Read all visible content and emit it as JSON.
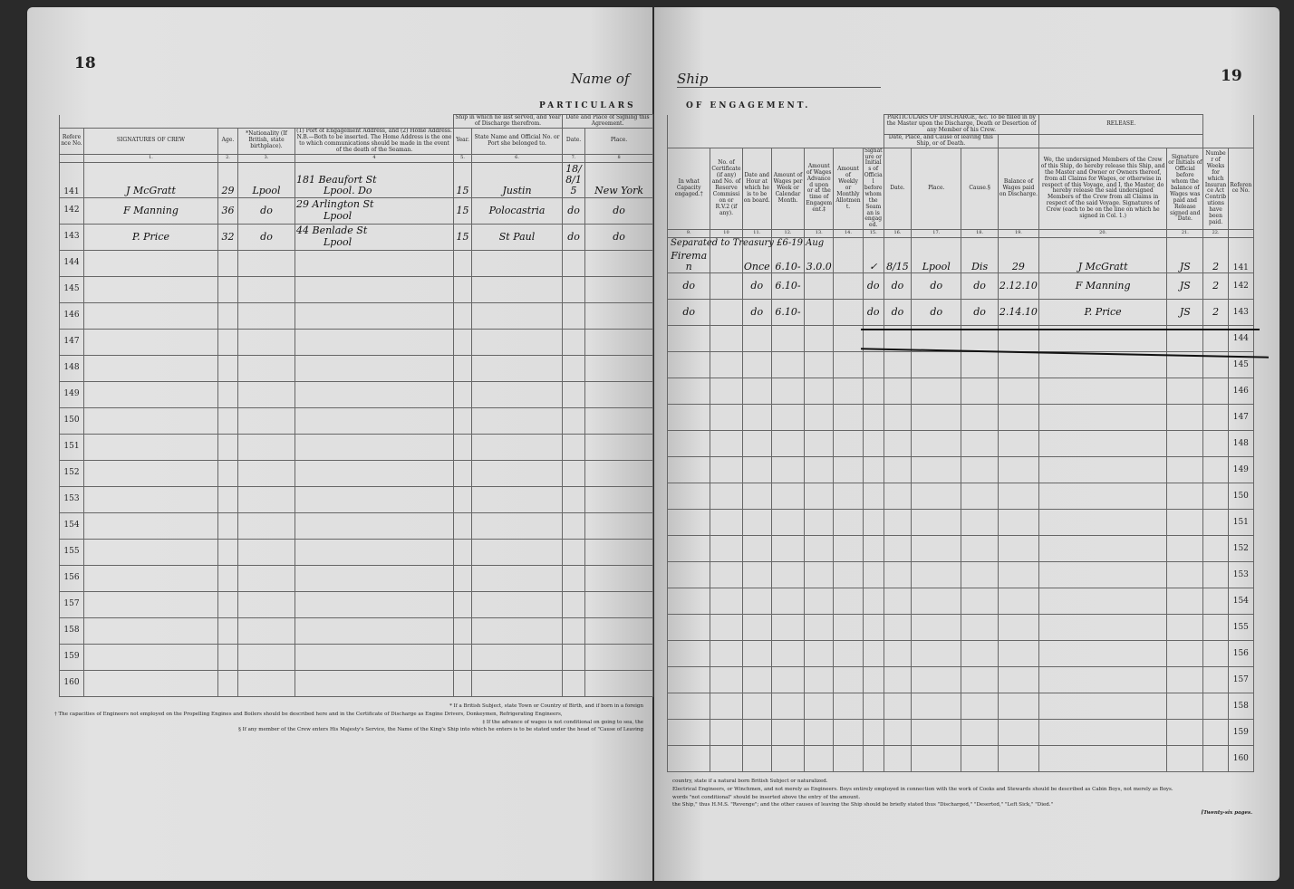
{
  "left_page": {
    "page_number": "18",
    "title": "Name of",
    "banner": "PARTICULARS",
    "columns": [
      {
        "label": "Reference No.",
        "num": ""
      },
      {
        "label": "SIGNATURES OF CREW",
        "num": "1."
      },
      {
        "label": "Age.",
        "num": "2."
      },
      {
        "label": "*Nationality (If British, state birthplace).",
        "num": "3."
      },
      {
        "label": "(1) Port of Engagement Address, and (2) Home Address. N.B.—Both to be inserted. The Home Address is the one to which communications should be made in the event of the death of the Seaman.",
        "num": "4"
      },
      {
        "label": "Year.",
        "num": "5."
      },
      {
        "label": "State Name and Official No. or Port she belonged to.",
        "num": "6."
      },
      {
        "label": "Date.",
        "num": "7."
      },
      {
        "label": "Place.",
        "num": "8"
      }
    ],
    "group_headers": {
      "ship": "Ship in which he last served, and Year of Discharge therefrom.",
      "signing": "Date and Place of Signing this Agreement."
    },
    "rows": [
      {
        "ref": "141",
        "name": "J McGratt",
        "age": "29",
        "nationality": "Lpool",
        "address1": "181 Beaufort St",
        "address2": "Lpool. Do",
        "year": "15",
        "ship": "Justin",
        "date": "18/8/15",
        "place": "New York"
      },
      {
        "ref": "142",
        "name": "F Manning",
        "age": "36",
        "nationality": "do",
        "address1": "29 Arlington St",
        "address2": "Lpool",
        "year": "15",
        "ship": "Polocastria",
        "date": "do",
        "place": "do"
      },
      {
        "ref": "143",
        "name": "P. Price",
        "age": "32",
        "nationality": "do",
        "address1": "44 Benlade St",
        "address2": "Lpool",
        "year": "15",
        "ship": "St Paul",
        "date": "do",
        "place": "do"
      },
      {
        "ref": "144"
      },
      {
        "ref": "145"
      },
      {
        "ref": "146"
      },
      {
        "ref": "147"
      },
      {
        "ref": "148"
      },
      {
        "ref": "149"
      },
      {
        "ref": "150"
      },
      {
        "ref": "151"
      },
      {
        "ref": "152"
      },
      {
        "ref": "153"
      },
      {
        "ref": "154"
      },
      {
        "ref": "155"
      },
      {
        "ref": "156"
      },
      {
        "ref": "157"
      },
      {
        "ref": "158"
      },
      {
        "ref": "159"
      },
      {
        "ref": "160"
      }
    ],
    "footnotes": [
      "† The capacities of Engineers not employed on the Propelling Engines and Boilers should be described here and in the Certificate of Discharge as Engine Drivers, Donkeymen, Refrigerating Engineers,",
      "* If a British Subject, state Town or Country of Birth, and if born in a foreign",
      "§ If any member of the Crew enters His Majesty's Service, the Name of the King's Ship into which he enters is to be stated under the head of \"Cause of Leaving",
      "‡ If the advance of wages is not conditional on going to sea, the"
    ]
  },
  "right_page": {
    "page_number": "19",
    "title": "Ship",
    "banner": "OF ENGAGEMENT.",
    "columns": [
      {
        "label": "In what Capacity engaged.†",
        "num": "9."
      },
      {
        "label": "No. of Certificate (if any) and No. of Reserve Commission or R.V.2 (if any).",
        "num": "10"
      },
      {
        "label": "Date and Hour at which he is to be on board.",
        "num": "11."
      },
      {
        "label": "Amount of Wages per Week or Calendar Month.",
        "num": "12."
      },
      {
        "label": "Amount of Wages Advanced upon or at the time of Engagement.‡",
        "num": "13."
      },
      {
        "label": "Amount of Weekly or Monthly Allotment.",
        "num": "14."
      },
      {
        "label": "Signature or Initials of Official before whom the Seaman is engaged.",
        "num": "15."
      },
      {
        "label": "Date.",
        "num": "16."
      },
      {
        "label": "Place.",
        "num": "17."
      },
      {
        "label": "Cause.§",
        "num": "18."
      },
      {
        "label": "Balance of Wages paid on Discharge.",
        "num": "19."
      },
      {
        "label": "We, the undersigned Members of the Crew of this Ship, do hereby release this Ship, and the Master and Owner or Owners thereof, from all Claims for Wages, or otherwise in respect of this Voyage, and I, the Master, do hereby release the said undersigned Members of the Crew from all Claims in respect of the said Voyage. Signatures of Crew (each to be on the line on which he signed in Col. 1.)",
        "num": "20."
      },
      {
        "label": "Signature or Initials of Official before whom the balance of Wages was paid and Release signed and Date.",
        "num": "21."
      },
      {
        "label": "Number of Weeks for which Insurance Act Contributions have been paid.",
        "num": "22."
      },
      {
        "label": "Reference No.",
        "num": ""
      }
    ],
    "group_headers": {
      "discharge": "PARTICULARS OF DISCHARGE, &c. To be filled in by the Master upon the Discharge, Death or Desertion of any Member of his Crew.",
      "discharge_sub": "Date, Place, and Cause of leaving this Ship, or of Death.",
      "release": "RELEASE."
    },
    "rows": [
      {
        "ref": "141",
        "capacity": "Fireman",
        "note": "Separated to Treasury £6-19 Aug",
        "date_hour": "Once",
        "wages": "6.10-",
        "advance": "3.0.0",
        "official": "✓",
        "dis_date": "8/15",
        "dis_place": "Lpool",
        "cause": "Dis",
        "balance": "29",
        "release_sig": "J McGratt",
        "official_sig": "JS",
        "weeks": "2"
      },
      {
        "ref": "142",
        "capacity": "do",
        "date_hour": "do",
        "wages": "6.10-",
        "official": "do",
        "dis_date": "do",
        "dis_place": "do",
        "cause": "do",
        "balance": "2.12.10",
        "release_sig": "F Manning",
        "official_sig": "JS",
        "weeks": "2"
      },
      {
        "ref": "143",
        "capacity": "do",
        "date_hour": "do",
        "wages": "6.10-",
        "official": "do",
        "dis_date": "do",
        "dis_place": "do",
        "cause": "do",
        "balance": "2.14.10",
        "release_sig": "P. Price",
        "official_sig": "JS",
        "weeks": "2"
      },
      {
        "ref": "144"
      },
      {
        "ref": "145"
      },
      {
        "ref": "146"
      },
      {
        "ref": "147"
      },
      {
        "ref": "148"
      },
      {
        "ref": "149"
      },
      {
        "ref": "150"
      },
      {
        "ref": "151"
      },
      {
        "ref": "152"
      },
      {
        "ref": "153"
      },
      {
        "ref": "154"
      },
      {
        "ref": "155"
      },
      {
        "ref": "156"
      },
      {
        "ref": "157"
      },
      {
        "ref": "158"
      },
      {
        "ref": "159"
      },
      {
        "ref": "160"
      }
    ],
    "footnotes": [
      "country, state if a natural born British Subject or naturalized.",
      "Electrical Engineers, or Winchmen, and not merely as Engineers. Boys entirely employed in connection with the work of Cooks and Stewards should be described as Cabin Boys, not merely as Boys.",
      "words \"not conditional\" should be inserted above the entry of the amount.",
      "the Ship,\" thus H.M.S. \"Revenge\"; and the other causes of leaving the Ship should be briefly stated thus \"Discharged,\" \"Deserted,\" \"Left Sick,\" \"Died.\""
    ],
    "pages_note": "[Twenty-six pages."
  }
}
